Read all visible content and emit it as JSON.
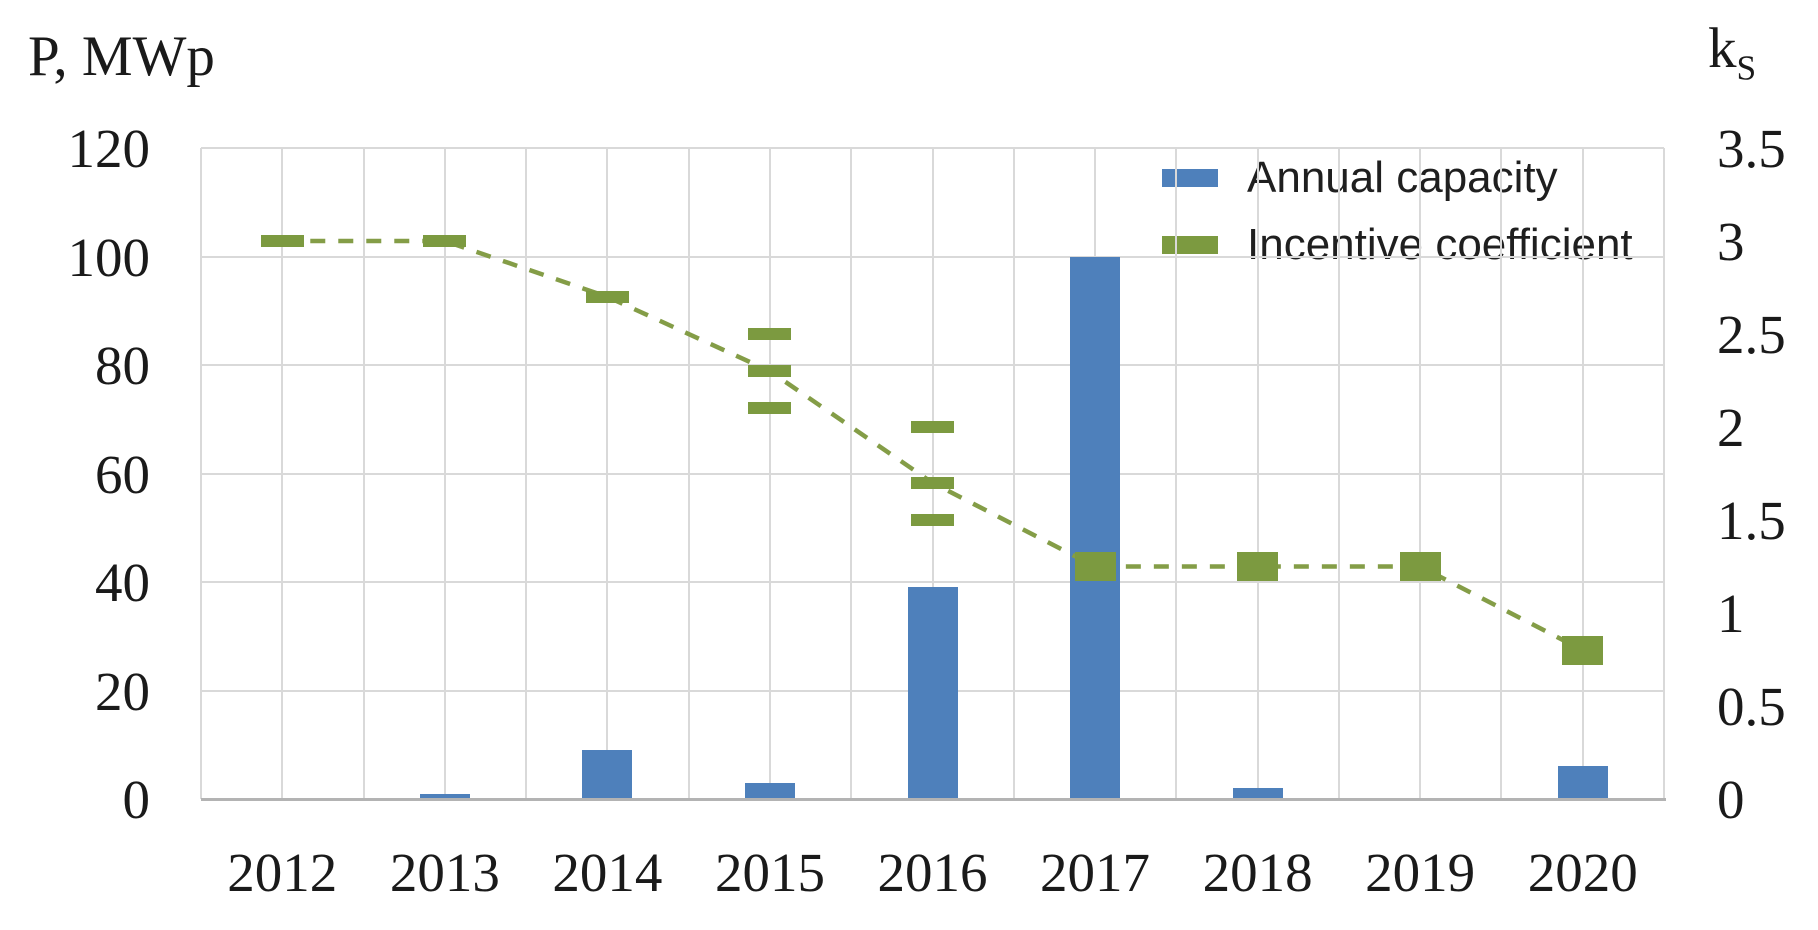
{
  "chart_data": {
    "type": "combo",
    "sub_types": [
      "bar",
      "line-with-markers"
    ],
    "categories": [
      "2012",
      "2013",
      "2014",
      "2015",
      "2016",
      "2017",
      "2018",
      "2019",
      "2020"
    ],
    "left_axis": {
      "title": "P, MWp",
      "ticks": [
        "120",
        "100",
        "80",
        "60",
        "40",
        "20",
        "0"
      ],
      "range": [
        0,
        120
      ]
    },
    "right_axis": {
      "title_main": "k",
      "title_sub": "S",
      "ticks": [
        "3.5",
        "3",
        "2.5",
        "2",
        "1.5",
        "1",
        "0.5",
        "0"
      ],
      "range": [
        0,
        3.5
      ]
    },
    "series": [
      {
        "name": "Annual capacity",
        "type": "bar",
        "axis": "left",
        "color": "#4e80bb",
        "values": [
          0,
          1,
          9,
          3,
          39,
          100,
          2,
          0,
          6
        ]
      },
      {
        "name": "Incentive coefficient",
        "type": "dashed-line-with-markers",
        "axis": "right",
        "marker_color": "#7c9a40",
        "line_color": "#849d47",
        "line_dash": [
          15,
          13
        ],
        "line_values": [
          3,
          3,
          2.7,
          2.3,
          1.7,
          1.25,
          1.25,
          1.25,
          0.8
        ],
        "markers_by_year": [
          [
            3
          ],
          [
            3
          ],
          [
            2.7
          ],
          [
            2.5,
            2.3,
            2.1
          ],
          [
            2,
            1.7,
            1.5
          ],
          [
            1.25
          ],
          [
            1.25
          ],
          [
            1.25
          ],
          [
            0.8
          ]
        ],
        "marker_shapes": [
          "dash",
          "dash",
          "dash",
          "dash",
          "dash",
          "square",
          "square",
          "square",
          "square"
        ]
      }
    ],
    "legend": {
      "position": "top-right-inside",
      "items": [
        {
          "label": "Annual capacity",
          "color": "#4e80bb"
        },
        {
          "label": "Incentive coefficient",
          "color": "#7c9a40"
        }
      ]
    },
    "grid": {
      "horizontal": true,
      "vertical": true,
      "color": "#d9d9d9",
      "axis_line_color": "#b3b3b3"
    },
    "text_color": "#1a1a1a",
    "background": "#ffffff"
  }
}
